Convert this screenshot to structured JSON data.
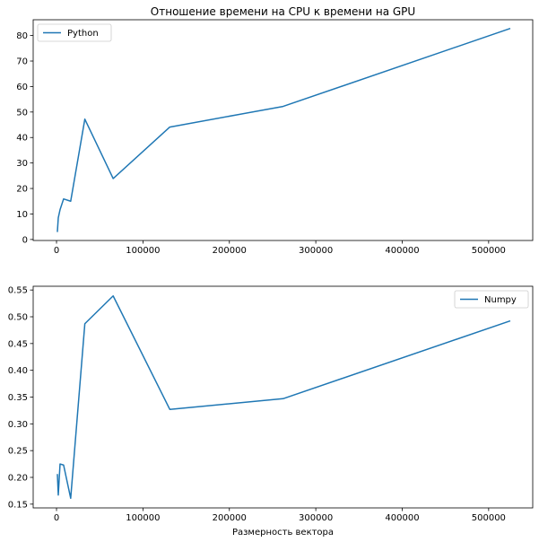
{
  "chart_data": [
    {
      "type": "line",
      "title": "Отношение времени на CPU к времени на GPU",
      "xlabel": "",
      "ylabel": "",
      "xlim": [
        -27000,
        551000
      ],
      "ylim": [
        -0.4,
        86.2
      ],
      "x_ticks": [
        0,
        100000,
        200000,
        300000,
        400000,
        500000
      ],
      "x_tick_labels": [
        "0",
        "100000",
        "200000",
        "300000",
        "400000",
        "500000"
      ],
      "y_ticks": [
        0,
        10,
        20,
        30,
        40,
        50,
        60,
        70,
        80
      ],
      "y_tick_labels": [
        "0",
        "10",
        "20",
        "30",
        "40",
        "50",
        "60",
        "70",
        "80"
      ],
      "legend_position": "top-left",
      "grid": false,
      "series": [
        {
          "name": "Python",
          "color": "#1f77b4",
          "x": [
            1024,
            2048,
            4096,
            8192,
            16384,
            32768,
            65536,
            131072,
            262144,
            524288
          ],
          "y": [
            3.2,
            8.5,
            11.7,
            15.9,
            15.0,
            47.2,
            23.9,
            44.1,
            52.2,
            82.7
          ]
        }
      ]
    },
    {
      "type": "line",
      "title": "",
      "xlabel": "Размерность вектора",
      "ylabel": "",
      "xlim": [
        -27000,
        551000
      ],
      "ylim": [
        0.143,
        0.557
      ],
      "x_ticks": [
        0,
        100000,
        200000,
        300000,
        400000,
        500000
      ],
      "x_tick_labels": [
        "0",
        "100000",
        "200000",
        "300000",
        "400000",
        "500000"
      ],
      "y_ticks": [
        0.15,
        0.2,
        0.25,
        0.3,
        0.35,
        0.4,
        0.45,
        0.5,
        0.55
      ],
      "y_tick_labels": [
        "0.15",
        "0.20",
        "0.25",
        "0.30",
        "0.35",
        "0.40",
        "0.45",
        "0.50",
        "0.55"
      ],
      "legend_position": "top-right",
      "grid": false,
      "series": [
        {
          "name": "Numpy",
          "color": "#1f77b4",
          "x": [
            1024,
            2048,
            4096,
            8192,
            16384,
            32768,
            65536,
            131072,
            262144,
            524288
          ],
          "y": [
            0.205,
            0.167,
            0.225,
            0.223,
            0.161,
            0.487,
            0.539,
            0.327,
            0.347,
            0.492
          ]
        }
      ]
    }
  ]
}
